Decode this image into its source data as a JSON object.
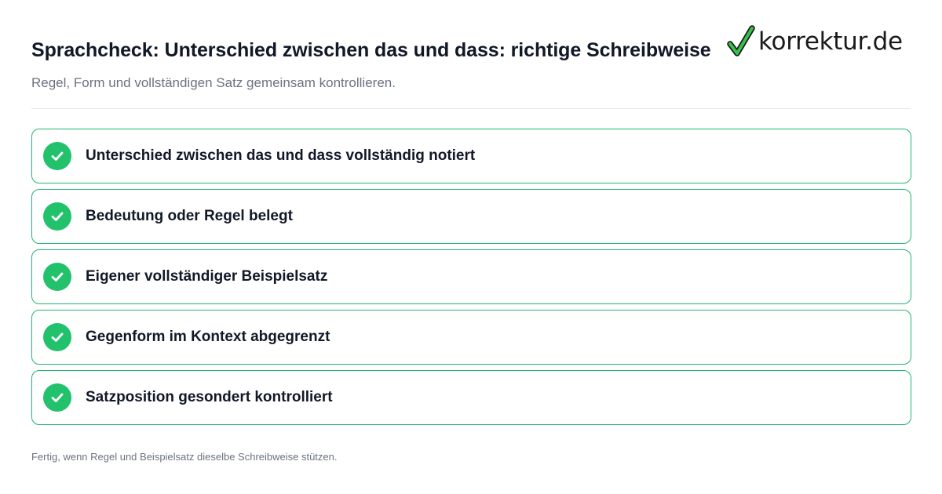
{
  "header": {
    "title": "Sprachcheck: Unterschied zwischen das und dass: richtige Schreibweise",
    "subtitle": "Regel, Form und vollständigen Satz gemeinsam kontrollieren."
  },
  "logo": {
    "text": "korrektur.de",
    "icon": "checkmark-icon",
    "check_color": "#1db954"
  },
  "checklist": {
    "accent": "#21c26b",
    "items": [
      {
        "label": "Unterschied zwischen das und dass vollständig notiert",
        "checked": true
      },
      {
        "label": "Bedeutung oder Regel belegt",
        "checked": true
      },
      {
        "label": "Eigener vollständiger Beispielsatz",
        "checked": true
      },
      {
        "label": "Gegenform im Kontext abgegrenzt",
        "checked": true
      },
      {
        "label": "Satzposition gesondert kontrolliert",
        "checked": true
      }
    ]
  },
  "footer": {
    "note": "Fertig, wenn Regel und Beispielsatz dieselbe Schreibweise stützen."
  }
}
